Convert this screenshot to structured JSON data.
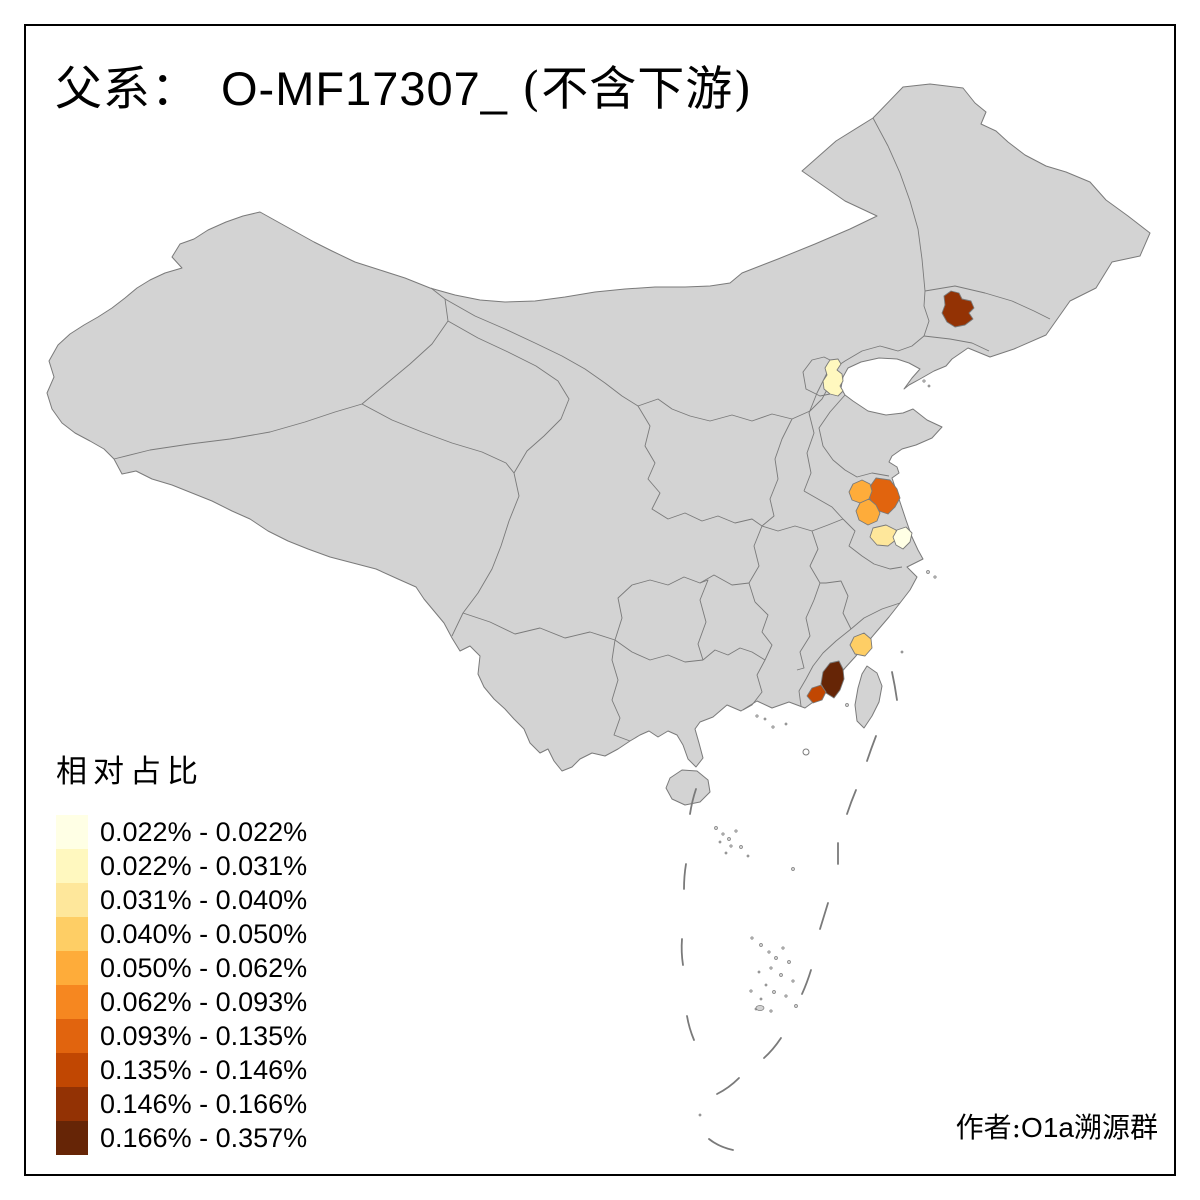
{
  "title": {
    "family_label": "父系：",
    "haplogroup": "O-MF17307_",
    "downstream_note": "(不含下游)"
  },
  "legend": {
    "title": "相对占比",
    "items": [
      {
        "label": "0.022% - 0.022%",
        "color": "#FFFFE5"
      },
      {
        "label": "0.022% - 0.031%",
        "color": "#FFF8BF"
      },
      {
        "label": "0.031% - 0.040%",
        "color": "#FEE79B"
      },
      {
        "label": "0.040% - 0.050%",
        "color": "#FECE65"
      },
      {
        "label": "0.050% - 0.062%",
        "color": "#FEAC3A"
      },
      {
        "label": "0.062% - 0.093%",
        "color": "#F68720"
      },
      {
        "label": "0.093% - 0.135%",
        "color": "#E1640E"
      },
      {
        "label": "0.135% - 0.146%",
        "color": "#C14702"
      },
      {
        "label": "0.146% - 0.166%",
        "color": "#933204"
      },
      {
        "label": "0.166% - 0.357%",
        "color": "#662506"
      }
    ]
  },
  "author": {
    "prefix": "作者:",
    "group_latin": "O1a",
    "group_cjk": "溯源群"
  },
  "map": {
    "land_color": "#D3D3D3",
    "border_color": "#7A7A7A",
    "frame_color": "#000000",
    "sea_color": "#FFFFFF",
    "regions": [
      {
        "id": "northeast-prefecture",
        "color": "#933204",
        "legend_class": "0.146% - 0.166%"
      },
      {
        "id": "tianjin",
        "color": "#FFF8BF",
        "legend_class": "0.022% - 0.031%"
      },
      {
        "id": "jiangsu-north-prefecture",
        "color": "#E1640E",
        "legend_class": "0.093% - 0.135%"
      },
      {
        "id": "jiangsu-west-prefecture",
        "color": "#FEAC3A",
        "legend_class": "0.050% - 0.062%"
      },
      {
        "id": "jiangsu-central-prefecture",
        "color": "#FEAC3A",
        "legend_class": "0.050% - 0.062%"
      },
      {
        "id": "jiangsu-taizhou-prefecture",
        "color": "#FEE79B",
        "legend_class": "0.031% - 0.040%"
      },
      {
        "id": "jiangsu-nantong-prefecture",
        "color": "#FFFFE5",
        "legend_class": "0.022% - 0.022%"
      },
      {
        "id": "fujian-coastal-prefecture",
        "color": "#FECE65",
        "legend_class": "0.040% - 0.050%"
      },
      {
        "id": "fujian-south-prefecture",
        "color": "#662506",
        "legend_class": "0.166% - 0.357%"
      },
      {
        "id": "fujian-southwest-prefecture",
        "color": "#C14702",
        "legend_class": "0.135% - 0.146%"
      }
    ]
  }
}
